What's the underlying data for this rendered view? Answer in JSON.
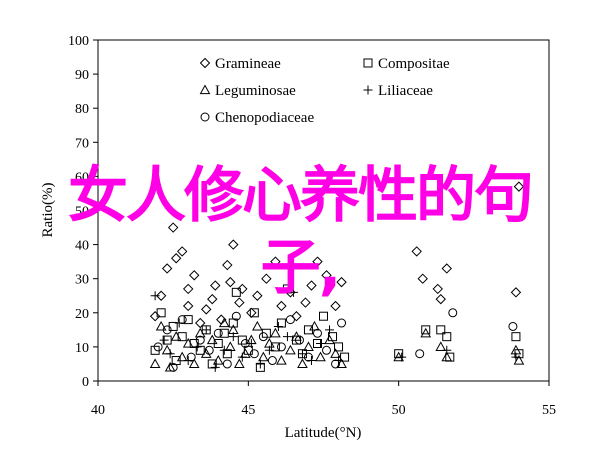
{
  "chart_data": {
    "type": "scatter",
    "xlabel": "Latitude(°N)",
    "ylabel": "Ratio(%)",
    "xlim": [
      40,
      55
    ],
    "ylim": [
      0,
      100
    ],
    "x_ticks": [
      40,
      45,
      50,
      55
    ],
    "y_ticks": [
      0,
      10,
      20,
      30,
      40,
      50,
      60,
      70,
      80,
      90,
      100
    ],
    "legend_position": "top-left",
    "series": [
      {
        "name": "Gramineae",
        "marker": "diamond",
        "points": [
          [
            41.9,
            19
          ],
          [
            42.1,
            25
          ],
          [
            42.3,
            33
          ],
          [
            42.5,
            45
          ],
          [
            42.6,
            36
          ],
          [
            42.8,
            38
          ],
          [
            43.0,
            22
          ],
          [
            43.0,
            27
          ],
          [
            43.2,
            31
          ],
          [
            43.4,
            17
          ],
          [
            43.6,
            21
          ],
          [
            43.8,
            24
          ],
          [
            43.9,
            28
          ],
          [
            44.1,
            18
          ],
          [
            44.3,
            34
          ],
          [
            44.4,
            29
          ],
          [
            44.5,
            40
          ],
          [
            44.7,
            23
          ],
          [
            44.8,
            27
          ],
          [
            45.1,
            20
          ],
          [
            45.3,
            25
          ],
          [
            45.6,
            30
          ],
          [
            45.9,
            35
          ],
          [
            46.1,
            22
          ],
          [
            46.4,
            26
          ],
          [
            46.6,
            19
          ],
          [
            46.9,
            23
          ],
          [
            47.1,
            28
          ],
          [
            47.3,
            35
          ],
          [
            47.6,
            31
          ],
          [
            47.9,
            22
          ],
          [
            48.1,
            29
          ],
          [
            50.6,
            38
          ],
          [
            50.8,
            30
          ],
          [
            51.3,
            27
          ],
          [
            51.4,
            24
          ],
          [
            51.6,
            33
          ],
          [
            53.9,
            26
          ],
          [
            54.0,
            57
          ]
        ]
      },
      {
        "name": "Compositae",
        "marker": "square",
        "points": [
          [
            41.9,
            9
          ],
          [
            42.1,
            20
          ],
          [
            42.3,
            12
          ],
          [
            42.5,
            16
          ],
          [
            42.6,
            6
          ],
          [
            42.8,
            13
          ],
          [
            43.0,
            18
          ],
          [
            43.2,
            11
          ],
          [
            43.4,
            9
          ],
          [
            43.6,
            15
          ],
          [
            43.8,
            5
          ],
          [
            44.0,
            11
          ],
          [
            44.2,
            14
          ],
          [
            44.3,
            8
          ],
          [
            44.5,
            17
          ],
          [
            44.6,
            26
          ],
          [
            44.8,
            12
          ],
          [
            45.0,
            9
          ],
          [
            45.2,
            20
          ],
          [
            45.4,
            4
          ],
          [
            45.6,
            14
          ],
          [
            45.9,
            10
          ],
          [
            46.1,
            17
          ],
          [
            46.3,
            27
          ],
          [
            46.6,
            12
          ],
          [
            46.8,
            8
          ],
          [
            47.0,
            15
          ],
          [
            47.3,
            11
          ],
          [
            47.5,
            19
          ],
          [
            47.8,
            13
          ],
          [
            48.0,
            10
          ],
          [
            48.2,
            7
          ],
          [
            50.0,
            8
          ],
          [
            50.9,
            15
          ],
          [
            51.4,
            15
          ],
          [
            51.6,
            13
          ],
          [
            51.7,
            7
          ],
          [
            53.9,
            13
          ],
          [
            54.0,
            8
          ]
        ]
      },
      {
        "name": "Leguminosae",
        "marker": "triangle",
        "points": [
          [
            41.9,
            5
          ],
          [
            42.1,
            16
          ],
          [
            42.3,
            9
          ],
          [
            42.4,
            4
          ],
          [
            42.6,
            13
          ],
          [
            42.8,
            7
          ],
          [
            43.0,
            11
          ],
          [
            43.2,
            5
          ],
          [
            43.4,
            14
          ],
          [
            43.6,
            8
          ],
          [
            43.8,
            12
          ],
          [
            44.0,
            6
          ],
          [
            44.2,
            17
          ],
          [
            44.4,
            10
          ],
          [
            44.5,
            15
          ],
          [
            44.7,
            5
          ],
          [
            44.9,
            8
          ],
          [
            45.1,
            12
          ],
          [
            45.3,
            16
          ],
          [
            45.5,
            7
          ],
          [
            45.7,
            11
          ],
          [
            45.9,
            14
          ],
          [
            46.1,
            6
          ],
          [
            46.4,
            9
          ],
          [
            46.6,
            13
          ],
          [
            46.8,
            5
          ],
          [
            47.0,
            10
          ],
          [
            47.2,
            16
          ],
          [
            47.4,
            7
          ],
          [
            47.7,
            12
          ],
          [
            47.9,
            8
          ],
          [
            48.1,
            5
          ],
          [
            50.0,
            7
          ],
          [
            50.9,
            14
          ],
          [
            51.4,
            10
          ],
          [
            51.6,
            7
          ],
          [
            53.9,
            9
          ],
          [
            54.0,
            6
          ]
        ]
      },
      {
        "name": "Liliaceae",
        "marker": "plus",
        "points": [
          [
            41.9,
            25
          ],
          [
            42.2,
            12
          ],
          [
            42.4,
            8
          ],
          [
            42.7,
            17
          ],
          [
            43.0,
            6
          ],
          [
            43.3,
            10
          ],
          [
            43.6,
            15
          ],
          [
            43.9,
            4
          ],
          [
            44.2,
            9
          ],
          [
            44.5,
            13
          ],
          [
            44.8,
            7
          ],
          [
            45.1,
            11
          ],
          [
            45.4,
            5
          ],
          [
            45.7,
            9
          ],
          [
            46.0,
            16
          ],
          [
            46.3,
            13
          ],
          [
            46.5,
            26
          ],
          [
            46.8,
            8
          ],
          [
            47.1,
            6
          ],
          [
            47.4,
            11
          ],
          [
            47.7,
            15
          ],
          [
            48.0,
            6
          ],
          [
            50.1,
            7
          ],
          [
            51.6,
            9
          ],
          [
            53.9,
            7
          ]
        ]
      },
      {
        "name": "Chenopodiaceae",
        "marker": "circle",
        "points": [
          [
            42.0,
            10
          ],
          [
            42.3,
            15
          ],
          [
            42.5,
            4
          ],
          [
            42.8,
            18
          ],
          [
            43.1,
            7
          ],
          [
            43.4,
            12
          ],
          [
            43.7,
            9
          ],
          [
            44.0,
            14
          ],
          [
            44.3,
            5
          ],
          [
            44.6,
            19
          ],
          [
            44.9,
            11
          ],
          [
            45.2,
            8
          ],
          [
            45.5,
            13
          ],
          [
            45.8,
            6
          ],
          [
            46.1,
            10
          ],
          [
            46.4,
            18
          ],
          [
            46.7,
            12
          ],
          [
            47.0,
            7
          ],
          [
            47.3,
            14
          ],
          [
            47.6,
            9
          ],
          [
            47.9,
            5
          ],
          [
            48.1,
            17
          ],
          [
            50.7,
            8
          ],
          [
            51.8,
            20
          ],
          [
            53.8,
            16
          ]
        ]
      }
    ]
  },
  "overlay_text": {
    "line1": "女人修心养性的句",
    "line2": "子,"
  }
}
